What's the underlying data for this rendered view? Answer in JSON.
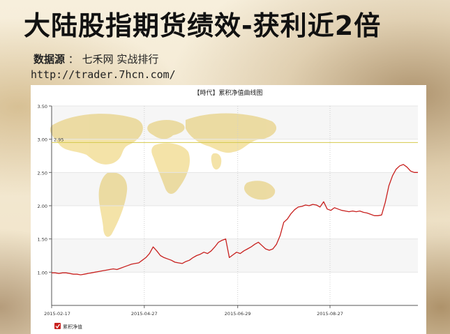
{
  "header": {
    "title": "大陆股指期货绩效-获利近2倍",
    "source_label": "数据源",
    "source_sep": " ： ",
    "source_text": "七禾网 实战排行",
    "url": "http://trader.7hcn.com/"
  },
  "chart_data": {
    "type": "line",
    "title": "【時代】累积净值曲线图",
    "xlabel": "",
    "ylabel": "",
    "x_ticks": [
      "2015-02-17",
      "2015-04-27",
      "2015-06-29",
      "2015-08-27"
    ],
    "y_ticks": [
      "1.00",
      "1.50",
      "2.00",
      "2.50",
      "3.00",
      "3.50"
    ],
    "ylim": [
      0.5,
      3.5
    ],
    "grid": true,
    "reference_line": {
      "value": 2.95,
      "label": "2.95",
      "color": "#d4c94a"
    },
    "legend": {
      "position": "bottom-left",
      "entries": [
        "累积净值"
      ]
    },
    "series": [
      {
        "name": "累积净值",
        "color": "#c8201e",
        "x": [
          0,
          2,
          4,
          6,
          8,
          10,
          12,
          14,
          16,
          18,
          20,
          22,
          24,
          26,
          28,
          30,
          32,
          34,
          36,
          38,
          40,
          42,
          44,
          46,
          48,
          50,
          52,
          54,
          56,
          58,
          60,
          62,
          64,
          66,
          68,
          70,
          72,
          74,
          76,
          78,
          80,
          82,
          84,
          86,
          88,
          90,
          92,
          94,
          96,
          98,
          100,
          102,
          104,
          106,
          108,
          110,
          112,
          114,
          116,
          118,
          120,
          122,
          124,
          126,
          128,
          130,
          132,
          134,
          136,
          138,
          140,
          142,
          144,
          146,
          148,
          150,
          152,
          154,
          156,
          158,
          160,
          162,
          164,
          166,
          168,
          170,
          172,
          174,
          176,
          178,
          180,
          182,
          184,
          186,
          188,
          190,
          192,
          194,
          196,
          198,
          200,
          202
        ],
        "y": [
          0.99,
          0.99,
          0.98,
          0.99,
          0.99,
          0.98,
          0.97,
          0.97,
          0.96,
          0.97,
          0.98,
          0.99,
          1.0,
          1.01,
          1.02,
          1.03,
          1.04,
          1.05,
          1.04,
          1.06,
          1.08,
          1.1,
          1.12,
          1.13,
          1.14,
          1.18,
          1.22,
          1.28,
          1.38,
          1.32,
          1.25,
          1.22,
          1.2,
          1.18,
          1.15,
          1.14,
          1.13,
          1.16,
          1.18,
          1.22,
          1.25,
          1.27,
          1.3,
          1.28,
          1.32,
          1.38,
          1.45,
          1.48,
          1.5,
          1.22,
          1.26,
          1.3,
          1.28,
          1.32,
          1.35,
          1.38,
          1.42,
          1.45,
          1.4,
          1.35,
          1.33,
          1.35,
          1.42,
          1.55,
          1.75,
          1.8,
          1.88,
          1.94,
          1.98,
          1.99,
          2.01,
          2.0,
          2.02,
          2.01,
          1.98,
          2.06,
          1.95,
          1.93,
          1.97,
          1.95,
          1.93,
          1.92,
          1.91,
          1.92,
          1.91,
          1.92,
          1.9,
          1.89,
          1.87,
          1.85,
          1.85,
          1.86,
          2.05,
          2.3,
          2.45,
          2.55,
          2.6,
          2.62,
          2.58,
          2.52,
          2.5,
          2.5
        ]
      }
    ]
  }
}
